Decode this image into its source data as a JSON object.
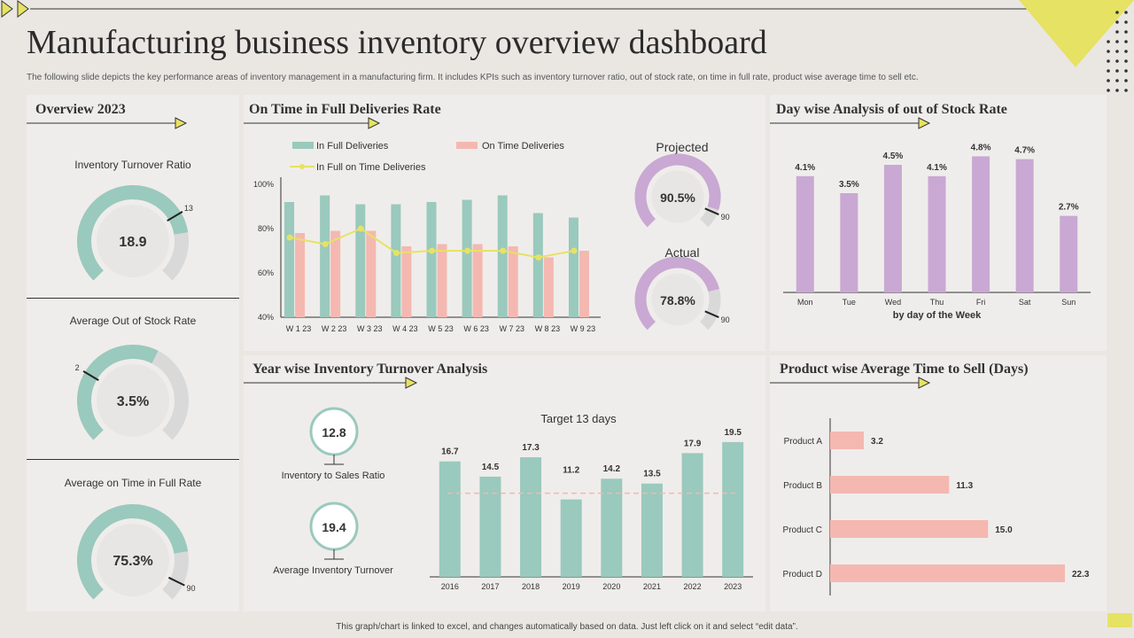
{
  "header": {
    "title": "Manufacturing business inventory overview dashboard",
    "subtitle": "The following slide depicts the key performance areas of inventory management in a manufacturing firm. It includes KPIs  such as inventory turnover ratio, out of stock rate, on time in  full rate, product wise average time to sell etc."
  },
  "footer": "This graph/chart is linked to excel, and changes automatically based on data. Just left click on it and select “edit data”.",
  "colors": {
    "teal": "#9ac9bd",
    "pink": "#f4b8b1",
    "purple": "#c9a8d3",
    "yellow": "#e6e264",
    "gray": "#d9d9d9"
  },
  "overview": {
    "title": "Overview 2023",
    "kpis": [
      {
        "label": "Inventory Turnover Ratio",
        "value": "18.9",
        "fraction": 0.8,
        "marker": "13",
        "marker_fraction": 0.72
      },
      {
        "label": "Average Out of Stock Rate",
        "value": "3.5%",
        "fraction": 0.6,
        "marker": "2",
        "marker_fraction": 0.28
      },
      {
        "label": "Average on Time in Full Rate",
        "value": "75.3%",
        "fraction": 0.8,
        "marker": "90",
        "marker_fraction": 0.93
      }
    ]
  },
  "otif": {
    "title": "On Time in Full Deliveries Rate",
    "projected": {
      "label": "Projected",
      "value": "90.5%",
      "fraction": 0.9,
      "marker": "90"
    },
    "actual": {
      "label": "Actual",
      "value": "78.8%",
      "fraction": 0.78,
      "marker": "90"
    }
  },
  "stock": {
    "title": "Day wise Analysis of out of Stock Rate"
  },
  "yearwise": {
    "title": "Year wise Inventory Turnover Analysis",
    "ratios": [
      {
        "value": "12.8",
        "label": "Inventory to Sales Ratio"
      },
      {
        "value": "19.4",
        "label": "Average Inventory Turnover"
      }
    ]
  },
  "product": {
    "title": "Product wise Average Time to Sell (Days)"
  },
  "chart_data": [
    {
      "type": "bar",
      "id": "otif",
      "categories": [
        "W 1 23",
        "W 2 23",
        "W 3 23",
        "W 4 23",
        "W 5 23",
        "W 6 23",
        "W 7 23",
        "W 8 23",
        "W 9 23"
      ],
      "series": [
        {
          "name": "In Full Deliveries",
          "kind": "bar",
          "values": [
            92,
            95,
            91,
            91,
            92,
            93,
            95,
            87,
            85
          ]
        },
        {
          "name": "On Time Deliveries",
          "kind": "bar",
          "values": [
            78,
            79,
            79,
            72,
            73,
            73,
            72,
            67,
            70
          ]
        },
        {
          "name": "In Full on Time Deliveries",
          "kind": "line",
          "values": [
            76,
            73,
            80,
            69,
            70,
            70,
            70,
            67,
            70
          ]
        }
      ],
      "yticks": [
        "40%",
        "60%",
        "80%",
        "100%"
      ],
      "ylim": [
        40,
        100
      ]
    },
    {
      "type": "bar",
      "id": "stock",
      "categories": [
        "Mon",
        "Tue",
        "Wed",
        "Thu",
        "Fri",
        "Sat",
        "Sun"
      ],
      "values": [
        4.1,
        3.5,
        4.5,
        4.1,
        4.8,
        4.7,
        2.7
      ],
      "labels": [
        "4.1%",
        "3.5%",
        "4.5%",
        "4.1%",
        "4.8%",
        "4.7%",
        "2.7%"
      ],
      "xlabel": "by day of the Week",
      "ylim": [
        0,
        5.0
      ]
    },
    {
      "type": "bar",
      "id": "yearwise",
      "title": "Target  13 days",
      "target": 13,
      "categories": [
        "2016",
        "2017",
        "2018",
        "2019",
        "2020",
        "2021",
        "2022",
        "2023"
      ],
      "values": [
        16.7,
        14.5,
        17.3,
        11.2,
        14.2,
        13.5,
        17.9,
        19.5
      ],
      "labels": [
        "16.7",
        "14.5",
        "17.3",
        "11.2",
        "14.2",
        "13.5",
        "17.9",
        "19.5"
      ],
      "ylim": [
        0,
        20
      ]
    },
    {
      "type": "bar",
      "id": "product",
      "orientation": "horizontal",
      "categories": [
        "Product A",
        "Product B",
        "Product C",
        "Product D"
      ],
      "values": [
        3.2,
        11.3,
        15.0,
        22.3
      ],
      "labels": [
        "3.2",
        "11.3",
        "15.0",
        "22.3"
      ],
      "xlim": [
        0,
        22.3
      ]
    }
  ]
}
